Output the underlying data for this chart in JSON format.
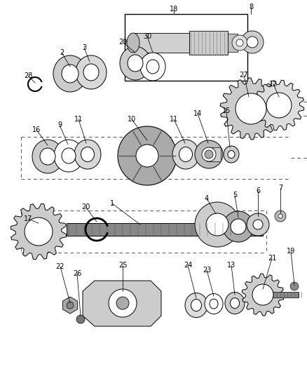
{
  "bg_color": "#ffffff",
  "line_color": "#000000",
  "font_size": 7.0,
  "figsize": [
    4.38,
    5.33
  ],
  "dpi": 100
}
